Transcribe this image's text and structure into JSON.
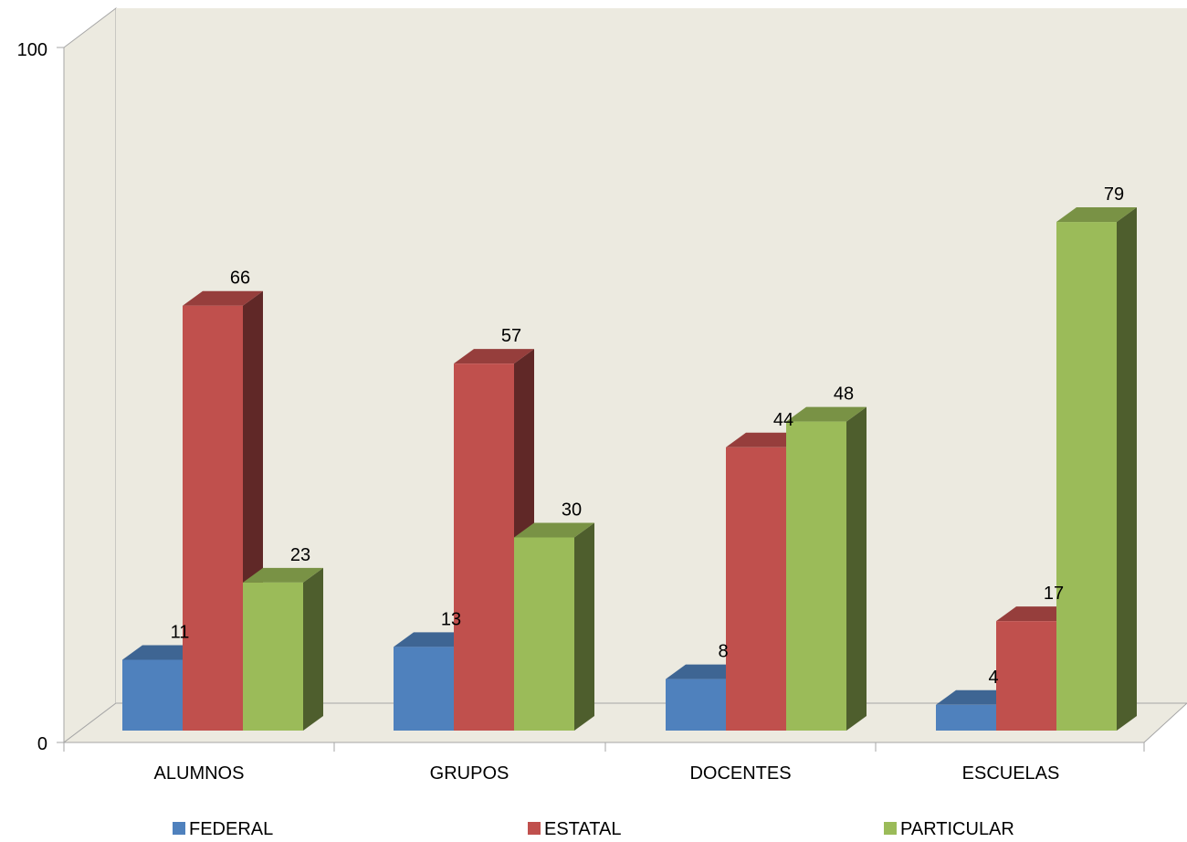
{
  "chart_data": {
    "type": "bar",
    "categories": [
      "ALUMNOS",
      "GRUPOS",
      "DOCENTES",
      "ESCUELAS"
    ],
    "series": [
      {
        "name": "FEDERAL",
        "values": [
          11,
          13,
          8,
          4
        ],
        "color": "#4F81BD"
      },
      {
        "name": "ESTATAL",
        "values": [
          66,
          57,
          44,
          17
        ],
        "color": "#C0504D"
      },
      {
        "name": "PARTICULAR",
        "values": [
          23,
          30,
          48,
          79
        ],
        "color": "#9BBB59"
      }
    ],
    "yticks": [
      "0",
      "100"
    ],
    "ylim": [
      0,
      100
    ],
    "legend_position": "bottom",
    "grid": false,
    "style": "3d-clustered-column"
  }
}
